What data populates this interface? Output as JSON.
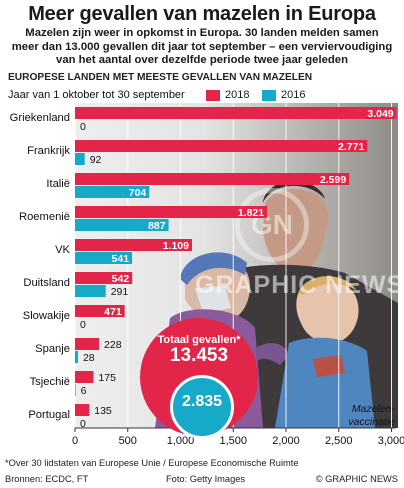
{
  "header": {
    "title": "Meer gevallen van mazelen in Europa",
    "subtitle_lines": [
      "Mazelen zijn weer in opkomst in Europa. 30 landen melden samen",
      "meer dan 13.000 gevallen dit jaar tot september – een verviervoudiging",
      "van het aantal over dezelfde periode twee jaar geleden"
    ]
  },
  "section_heading": "EUROPESE LANDEN MET MEESTE GEVALLEN VAN MAZELEN",
  "period": "Jaar van 1 oktober tot 30 september",
  "colors": {
    "y2018": "#e4254a",
    "y2016": "#17aac8"
  },
  "totals": {
    "label": "Totaal gevallen*",
    "value_2018": "13.453",
    "value_2016": "2.835"
  },
  "photo_caption_lines": [
    "Mazelen-",
    "vaccinatie"
  ],
  "watermark": "GRAPHIC NEWS",
  "watermark_logo": "GN",
  "footer": {
    "footnote": "*Over 30 lidstaten van Europese Unie / Europese Economische Ruimte",
    "sources": "Bronnen: ECDC, FT",
    "photo_credit": "Foto: Getty Images",
    "copyright": "© GRAPHIC NEWS"
  },
  "chart_data": {
    "type": "bar",
    "orientation": "horizontal",
    "categories": [
      "Griekenland",
      "Frankrijk",
      "Italië",
      "Roemenië",
      "VK",
      "Duitsland",
      "Slowakije",
      "Spanje",
      "Tsjechië",
      "Portugal"
    ],
    "series": [
      {
        "name": "2018",
        "values": [
          3049,
          2771,
          2599,
          1821,
          1109,
          542,
          471,
          228,
          175,
          135
        ],
        "labels": [
          "3.049",
          "2.771",
          "2.599",
          "1.821",
          "1.109",
          "542",
          "471",
          "228",
          "175",
          "135"
        ]
      },
      {
        "name": "2016",
        "values": [
          0,
          92,
          704,
          887,
          541,
          291,
          0,
          28,
          6,
          0
        ],
        "labels": [
          "0",
          "92",
          "704",
          "887",
          "541",
          "291",
          "0",
          "28",
          "6",
          "0"
        ]
      }
    ],
    "xlim": [
      0,
      3000
    ],
    "xticks": [
      0,
      500,
      1000,
      1500,
      2000,
      2500,
      3000
    ],
    "xtick_labels": [
      "0",
      "500",
      "1,000",
      "1,500",
      "2,000",
      "2,500",
      "3,000"
    ],
    "legend": [
      "2018",
      "2016"
    ],
    "legend_position": "top-right",
    "grid": true
  }
}
